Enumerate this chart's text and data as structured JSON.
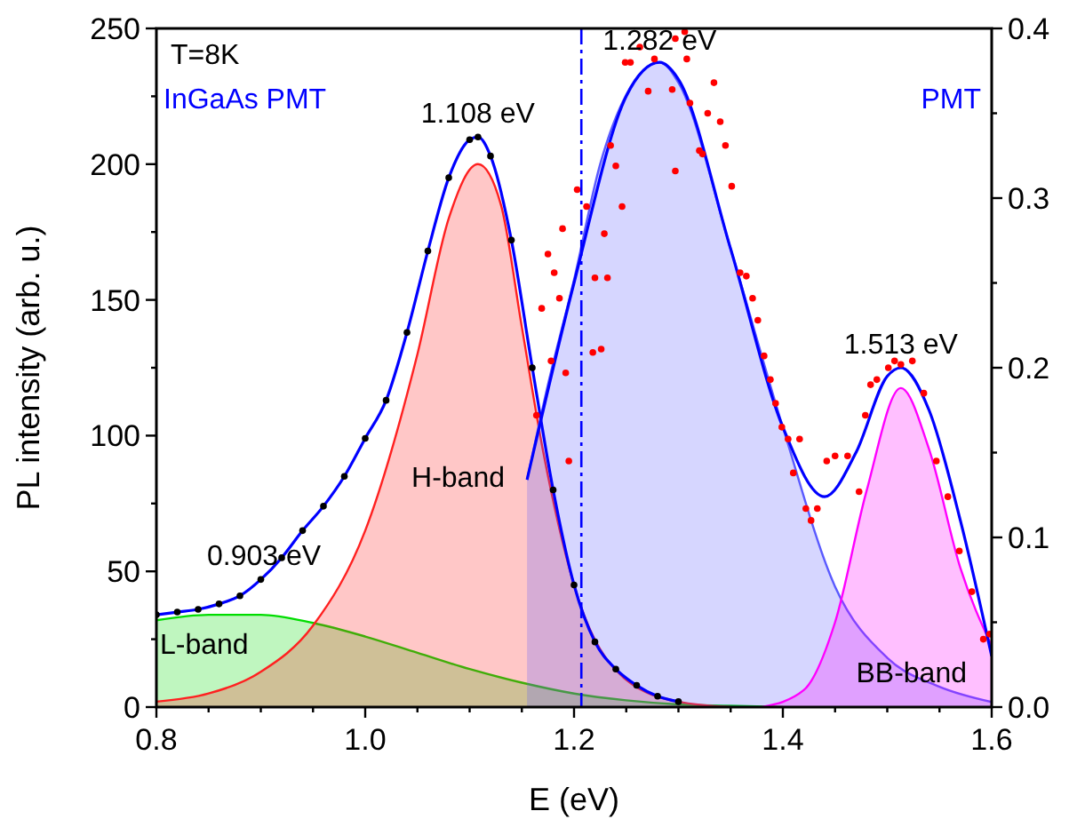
{
  "chart_data": {
    "type": "area",
    "xlabel": "E (eV)",
    "ylabel": "PL intensity (arb. u.)",
    "xlim": [
      0.8,
      1.6
    ],
    "xticks": [
      {
        "value": 0.8,
        "label": "0.8"
      },
      {
        "value": 0.85,
        "label": null
      },
      {
        "value": 0.9,
        "label": null
      },
      {
        "value": 0.95,
        "label": null
      },
      {
        "value": 1.0,
        "label": "1.0"
      },
      {
        "value": 1.05,
        "label": null
      },
      {
        "value": 1.1,
        "label": null
      },
      {
        "value": 1.15,
        "label": null
      },
      {
        "value": 1.2,
        "label": "1.2"
      },
      {
        "value": 1.25,
        "label": null
      },
      {
        "value": 1.3,
        "label": null
      },
      {
        "value": 1.35,
        "label": null
      },
      {
        "value": 1.4,
        "label": "1.4"
      },
      {
        "value": 1.45,
        "label": null
      },
      {
        "value": 1.5,
        "label": null
      },
      {
        "value": 1.55,
        "label": null
      },
      {
        "value": 1.6,
        "label": "1.6"
      }
    ],
    "ylim": [
      0,
      250
    ],
    "yticks": [
      0,
      {
        "value": 25,
        "label": null
      },
      50,
      {
        "value": 75,
        "label": null
      },
      100,
      {
        "value": 125,
        "label": null
      },
      150,
      {
        "value": 175,
        "label": null
      },
      200,
      {
        "value": 225,
        "label": null
      },
      250
    ],
    "y2lim": [
      0,
      0.4
    ],
    "y2ticks": [
      {
        "value": 0,
        "label": "0.0"
      },
      {
        "value": 0.05,
        "label": null
      },
      {
        "value": 0.1,
        "label": "0.1"
      },
      {
        "value": 0.15,
        "label": null
      },
      {
        "value": 0.2,
        "label": "0.2"
      },
      {
        "value": 0.25,
        "label": null
      },
      {
        "value": 0.3,
        "label": "0.3"
      },
      {
        "value": 0.35,
        "label": null
      },
      {
        "value": 0.4,
        "label": "0.4"
      }
    ],
    "series": [
      {
        "color": "#00dd00",
        "x": [
          0.8,
          0.85,
          0.87,
          0.9,
          0.95,
          1.0,
          1.05,
          1.1,
          1.15,
          1.2,
          1.25,
          1.3,
          1.35,
          1.4
        ],
        "values": [
          32,
          34,
          34,
          34,
          31,
          26,
          20,
          14,
          9,
          5,
          2.5,
          1,
          0.5,
          0
        ]
      },
      {
        "color": "#ff2020",
        "x": [
          0.8,
          0.85,
          0.9,
          0.95,
          1.0,
          1.05,
          1.08,
          1.108,
          1.13,
          1.15,
          1.17,
          1.2,
          1.25,
          1.3,
          1.35
        ],
        "values": [
          2,
          5,
          13,
          30,
          65,
          130,
          180,
          200,
          185,
          140,
          95,
          45,
          10,
          2,
          0
        ]
      },
      {
        "axis": "y2",
        "color": "#5a5aff",
        "x": [
          1.155,
          1.175,
          1.2,
          1.225,
          1.25,
          1.282,
          1.3,
          1.35,
          1.4,
          1.45,
          1.5,
          1.55,
          1.6
        ],
        "values": [
          0.134,
          0.19,
          0.252,
          0.32,
          0.361,
          0.38,
          0.368,
          0.27,
          0.165,
          0.071,
          0.029,
          0.012,
          0.003
        ]
      },
      {
        "axis": "y2",
        "color": "#ff00ff",
        "x": [
          1.38,
          1.42,
          1.45,
          1.48,
          1.513,
          1.54,
          1.57,
          1.6
        ],
        "values": [
          0,
          0.01,
          0.05,
          0.127,
          0.188,
          0.152,
          0.082,
          0.036
        ]
      },
      {
        "type": "scatter",
        "marker": "circle",
        "color": "#000000",
        "x": [
          0.8,
          0.82,
          0.84,
          0.86,
          0.88,
          0.9,
          0.92,
          0.94,
          0.96,
          0.98,
          1.0,
          1.02,
          1.04,
          1.06,
          1.08,
          1.1,
          1.108,
          1.12,
          1.14,
          1.16,
          1.18,
          1.2,
          1.22,
          1.24,
          1.26,
          1.28,
          1.3
        ],
        "values": [
          34,
          35,
          36,
          38,
          41,
          47,
          55,
          65,
          74,
          85,
          99,
          113,
          138,
          168,
          195,
          209,
          210,
          203,
          172,
          125,
          80,
          45,
          24,
          14,
          8,
          4,
          2
        ]
      },
      {
        "type": "line",
        "color": "#0000ff",
        "x": [
          0.8,
          0.82,
          0.84,
          0.86,
          0.88,
          0.9,
          0.92,
          0.94,
          0.96,
          0.98,
          1.0,
          1.02,
          1.04,
          1.06,
          1.08,
          1.1,
          1.108,
          1.12,
          1.14,
          1.16,
          1.18,
          1.2,
          1.22,
          1.24,
          1.26,
          1.28,
          1.3
        ],
        "values": [
          34,
          35,
          36,
          38,
          41,
          47,
          55,
          65,
          74,
          85,
          99,
          113,
          138,
          168,
          195,
          209,
          210,
          203,
          172,
          125,
          80,
          45,
          24,
          14,
          8,
          4,
          2
        ]
      },
      {
        "type": "scatter",
        "marker": "circle",
        "axis": "y2",
        "color": "#ff0000",
        "x": [
          1.164,
          1.169,
          1.175,
          1.178,
          1.181,
          1.186,
          1.189,
          1.192,
          1.195,
          1.203,
          1.212,
          1.218,
          1.22,
          1.226,
          1.229,
          1.232,
          1.235,
          1.24,
          1.246,
          1.249,
          1.254,
          1.263,
          1.271,
          1.277,
          1.294,
          1.297,
          1.297,
          1.306,
          1.308,
          1.311,
          1.32,
          1.323,
          1.328,
          1.334,
          1.34,
          1.345,
          1.351,
          1.359,
          1.365,
          1.371,
          1.376,
          1.382,
          1.388,
          1.393,
          1.399,
          1.405,
          1.41,
          1.416,
          1.422,
          1.427,
          1.433,
          1.442,
          1.45,
          1.462,
          1.473,
          1.479,
          1.484,
          1.49,
          1.501,
          1.507,
          1.513,
          1.524,
          1.535,
          1.547,
          1.558,
          1.569,
          1.581,
          1.592,
          1.598
        ],
        "values": [
          0.172,
          0.235,
          0.267,
          0.204,
          0.256,
          0.241,
          0.282,
          0.197,
          0.145,
          0.305,
          0.295,
          0.209,
          0.253,
          0.211,
          0.279,
          0.253,
          0.331,
          0.319,
          0.295,
          0.38,
          0.38,
          0.389,
          0.363,
          0.382,
          0.364,
          0.316,
          0.394,
          0.398,
          0.382,
          0.356,
          0.328,
          0.326,
          0.35,
          0.368,
          0.345,
          0.331,
          0.307,
          0.256,
          0.254,
          0.241,
          0.228,
          0.207,
          0.193,
          0.179,
          0.165,
          0.158,
          0.138,
          0.158,
          0.117,
          0.11,
          0.117,
          0.145,
          0.148,
          0.148,
          0.127,
          0.172,
          0.19,
          0.193,
          0.2,
          0.204,
          0.202,
          0.204,
          0.185,
          0.145,
          0.124,
          0.092,
          0.068,
          0.04,
          0.043
        ]
      },
      {
        "type": "line",
        "axis": "y2",
        "color": "#0000ff",
        "x": [
          1.155,
          1.2,
          1.25,
          1.282,
          1.3,
          1.35,
          1.4,
          1.44,
          1.47,
          1.5,
          1.513,
          1.54,
          1.57,
          1.6
        ],
        "values": [
          0.134,
          0.25,
          0.36,
          0.38,
          0.37,
          0.27,
          0.165,
          0.124,
          0.15,
          0.195,
          0.2,
          0.175,
          0.11,
          0.03
        ]
      }
    ],
    "ref_lines": [
      {
        "axis": "x",
        "value": 1.207,
        "color": "#0000ff",
        "line_style": "dashed"
      }
    ],
    "annotations": [
      "T=8K",
      "InGaAs PMT",
      "PMT",
      {
        "text": "1.108 eV",
        "x": 1.108,
        "y": 210
      },
      {
        "text": "1.282 eV",
        "x": 1.282,
        "y": 237
      },
      {
        "text": "1.513 eV",
        "x": 1.513,
        "y": 125
      },
      {
        "text": "0.903 eV",
        "x": 0.903,
        "y": 47
      },
      "H-band",
      "L-band",
      "BB-band"
    ]
  }
}
